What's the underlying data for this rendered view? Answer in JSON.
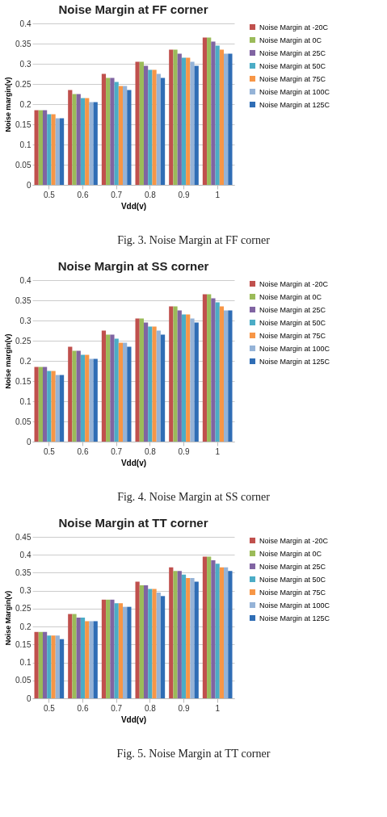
{
  "chart_data": [
    {
      "type": "bar",
      "title": "Noise Margin at FF corner",
      "xlabel": "Vdd(v)",
      "ylabel": "Noise margin(v)",
      "categories": [
        "0.5",
        "0.6",
        "0.7",
        "0.8",
        "0.9",
        "1"
      ],
      "ylim": [
        0,
        0.4
      ],
      "yticks": [
        0,
        0.05,
        0.1,
        0.15,
        0.2,
        0.25,
        0.3,
        0.35,
        0.4
      ],
      "grid": "y",
      "legend": "right",
      "annotations": [
        "Fig. 3. Noise Margin at FF corner"
      ],
      "series": [
        {
          "name": "Noise Margin at -20C",
          "color": "#c0504d",
          "values": [
            0.185,
            0.235,
            0.275,
            0.305,
            0.335,
            0.365
          ]
        },
        {
          "name": "Noise Margin at 0C",
          "color": "#9bbb59",
          "values": [
            0.185,
            0.225,
            0.265,
            0.305,
            0.335,
            0.365
          ]
        },
        {
          "name": "Noise Margin at  25C",
          "color": "#8064a2",
          "values": [
            0.185,
            0.225,
            0.265,
            0.295,
            0.325,
            0.355
          ]
        },
        {
          "name": "Noise Margin at 50C",
          "color": "#4bacc6",
          "values": [
            0.175,
            0.215,
            0.255,
            0.285,
            0.315,
            0.345
          ]
        },
        {
          "name": "Noise Margin at 75C",
          "color": "#f79646",
          "values": [
            0.175,
            0.215,
            0.245,
            0.285,
            0.315,
            0.335
          ]
        },
        {
          "name": "Noise Margin at 100C",
          "color": "#95b3d7",
          "values": [
            0.165,
            0.205,
            0.245,
            0.275,
            0.305,
            0.325
          ]
        },
        {
          "name": "Noise Margin at 125C",
          "color": "#2f6db5",
          "values": [
            0.165,
            0.205,
            0.235,
            0.265,
            0.295,
            0.325
          ]
        }
      ]
    },
    {
      "type": "bar",
      "title": "Noise Margin at SS corner",
      "xlabel": "Vdd(v)",
      "ylabel": "Noise margin(v)",
      "categories": [
        "0.5",
        "0.6",
        "0.7",
        "0.8",
        "0.9",
        "1"
      ],
      "ylim": [
        0,
        0.4
      ],
      "yticks": [
        0,
        0.05,
        0.1,
        0.15,
        0.2,
        0.25,
        0.3,
        0.35,
        0.4
      ],
      "grid": "y",
      "legend": "right",
      "annotations": [
        "Fig. 4. Noise Margin at SS corner"
      ],
      "series": [
        {
          "name": "Noise Margin at -20C",
          "color": "#c0504d",
          "values": [
            0.185,
            0.235,
            0.275,
            0.305,
            0.335,
            0.365
          ]
        },
        {
          "name": "Noise Margin at 0C",
          "color": "#9bbb59",
          "values": [
            0.185,
            0.225,
            0.265,
            0.305,
            0.335,
            0.365
          ]
        },
        {
          "name": "Noise Margin at  25C",
          "color": "#8064a2",
          "values": [
            0.185,
            0.225,
            0.265,
            0.295,
            0.325,
            0.355
          ]
        },
        {
          "name": "Noise Margin at 50C",
          "color": "#4bacc6",
          "values": [
            0.175,
            0.215,
            0.255,
            0.285,
            0.315,
            0.345
          ]
        },
        {
          "name": "Noise Margin at 75C",
          "color": "#f79646",
          "values": [
            0.175,
            0.215,
            0.245,
            0.285,
            0.315,
            0.335
          ]
        },
        {
          "name": "Noise Margin at 100C",
          "color": "#95b3d7",
          "values": [
            0.165,
            0.205,
            0.245,
            0.275,
            0.305,
            0.325
          ]
        },
        {
          "name": "Noise Margin at 125C",
          "color": "#2f6db5",
          "values": [
            0.165,
            0.205,
            0.235,
            0.265,
            0.295,
            0.325
          ]
        }
      ]
    },
    {
      "type": "bar",
      "title": "Noise Margin at TT corner",
      "xlabel": "Vdd(v)",
      "ylabel": "Noise Margin(v)",
      "categories": [
        "0.5",
        "0.6",
        "0.7",
        "0.8",
        "0.9",
        "1"
      ],
      "ylim": [
        0,
        0.45
      ],
      "yticks": [
        0,
        0.05,
        0.1,
        0.15,
        0.2,
        0.25,
        0.3,
        0.35,
        0.4,
        0.45
      ],
      "grid": "y",
      "legend": "right",
      "annotations": [
        "Fig. 5. Noise Margin at TT corner"
      ],
      "series": [
        {
          "name": "Noise Margin at -20C",
          "color": "#c0504d",
          "values": [
            0.185,
            0.235,
            0.275,
            0.325,
            0.365,
            0.395
          ]
        },
        {
          "name": "Noise Margin at 0C",
          "color": "#9bbb59",
          "values": [
            0.185,
            0.235,
            0.275,
            0.315,
            0.355,
            0.395
          ]
        },
        {
          "name": "Noise Margin at  25C",
          "color": "#8064a2",
          "values": [
            0.185,
            0.225,
            0.275,
            0.315,
            0.355,
            0.385
          ]
        },
        {
          "name": "Noise Margin at 50C",
          "color": "#4bacc6",
          "values": [
            0.175,
            0.225,
            0.265,
            0.305,
            0.345,
            0.375
          ]
        },
        {
          "name": "Noise Margin at 75C",
          "color": "#f79646",
          "values": [
            0.175,
            0.215,
            0.265,
            0.305,
            0.335,
            0.365
          ]
        },
        {
          "name": "Noise Margin at 100C",
          "color": "#95b3d7",
          "values": [
            0.175,
            0.215,
            0.255,
            0.295,
            0.335,
            0.365
          ]
        },
        {
          "name": "Noise Margin at 125C",
          "color": "#2f6db5",
          "values": [
            0.165,
            0.215,
            0.255,
            0.285,
            0.325,
            0.355
          ]
        }
      ]
    }
  ]
}
